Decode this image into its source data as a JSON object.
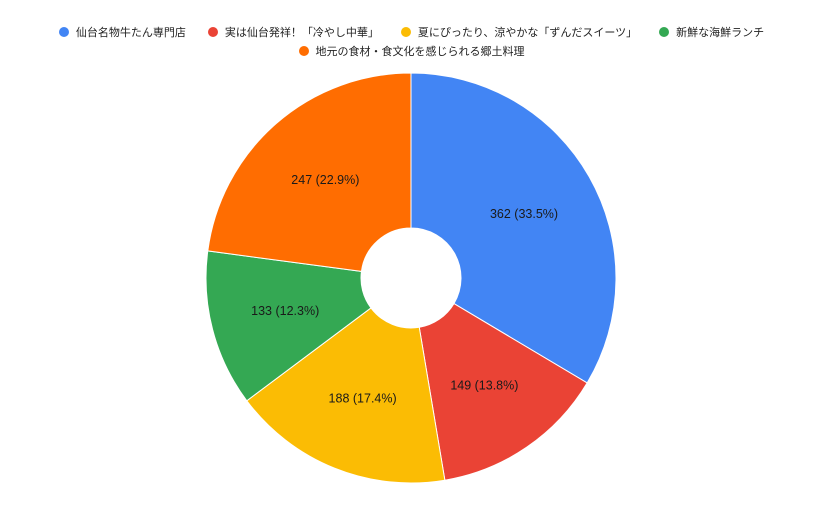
{
  "chart_data": {
    "type": "pie",
    "donut": true,
    "categories": [
      "仙台名物牛たん専門店",
      "実は仙台発祥！「冷やし中華」",
      "夏にぴったり、涼やかな「ずんだスイーツ」",
      "新鮮な海鮮ランチ",
      "地元の食材・食文化を感じられる郷土料理"
    ],
    "values": [
      362,
      149,
      188,
      133,
      247
    ],
    "data_labels": [
      "362 (33.5%)",
      "149 (13.8%)",
      "188 (17.4%)",
      "133 (12.3%)",
      "247 (22.9%)"
    ],
    "colors": [
      "#4285F4",
      "#EA4335",
      "#FBBC04",
      "#34A853",
      "#FF6D01"
    ],
    "legend_position": "top"
  },
  "legend": {
    "items": [
      {
        "label": "仙台名物牛たん専門店",
        "color": "#4285F4"
      },
      {
        "label": "実は仙台発祥！「冷やし中華」",
        "color": "#EA4335"
      },
      {
        "label": "夏にぴったり、涼やかな「ずんだスイーツ」",
        "color": "#FBBC04"
      },
      {
        "label": "新鮮な海鮮ランチ",
        "color": "#34A853"
      },
      {
        "label": "地元の食材・食文化を感じられる郷土料理",
        "color": "#FF6D01"
      }
    ]
  }
}
